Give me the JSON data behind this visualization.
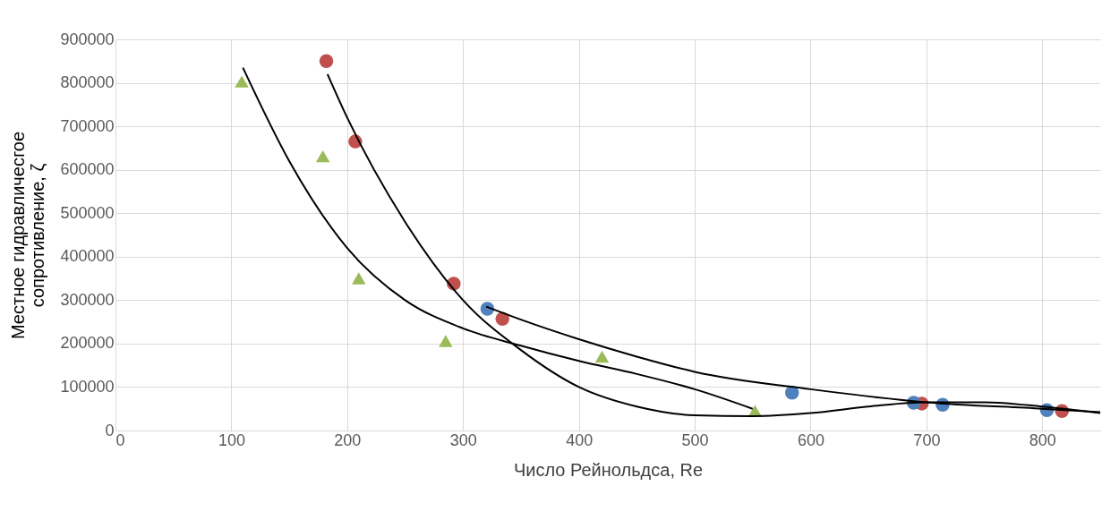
{
  "chart_data": {
    "type": "scatter",
    "xlabel": "Число Рейнольдса, Re",
    "ylabel": "Местное гидравличесгое\nсопротивление, ζ",
    "xlim": [
      0,
      850
    ],
    "xticks": [
      0,
      100,
      200,
      300,
      400,
      500,
      600,
      700,
      800
    ],
    "ylim": [
      0,
      900000
    ],
    "yticks": [
      0,
      100000,
      200000,
      300000,
      400000,
      500000,
      600000,
      700000,
      800000,
      900000
    ],
    "grid": true,
    "series": [
      {
        "marker": "circle",
        "color": "#c0504d",
        "x": [
          182,
          207,
          292,
          334,
          696,
          817
        ],
        "values": [
          850000,
          665000,
          338000,
          257000,
          62000,
          45000
        ]
      },
      {
        "marker": "circle",
        "color": "#4f81bd",
        "x": [
          321,
          584,
          689,
          714,
          804
        ],
        "values": [
          280000,
          87000,
          64000,
          59000,
          47000
        ]
      },
      {
        "marker": "triangle",
        "color": "#9bbb59",
        "x": [
          109,
          179,
          210,
          285,
          420,
          552
        ],
        "values": [
          803000,
          631000,
          350000,
          206000,
          170000,
          45000
        ]
      },
      {
        "type": "line",
        "marker": "none",
        "line_style": "solid",
        "color": "#000000",
        "x": [
          110,
          150,
          200,
          250,
          300,
          350,
          400,
          450,
          500,
          550
        ],
        "values": [
          835000,
          620000,
          420000,
          300000,
          235000,
          195000,
          160000,
          130000,
          95000,
          50000
        ]
      },
      {
        "type": "line",
        "marker": "none",
        "line_style": "solid",
        "color": "#000000",
        "x": [
          183,
          200,
          250,
          300,
          350,
          400,
          450,
          500,
          550,
          600,
          650,
          700,
          750,
          800,
          850
        ],
        "values": [
          820000,
          720000,
          480000,
          300000,
          185000,
          100000,
          55000,
          35000,
          33000,
          40000,
          55000,
          65000,
          65000,
          55000,
          40000
        ]
      },
      {
        "type": "line",
        "marker": "none",
        "line_style": "solid",
        "color": "#000000",
        "x": [
          320,
          350,
          400,
          450,
          500,
          600,
          700,
          800,
          850
        ],
        "values": [
          285000,
          255000,
          210000,
          170000,
          135000,
          95000,
          65000,
          50000,
          42000
        ]
      }
    ]
  }
}
